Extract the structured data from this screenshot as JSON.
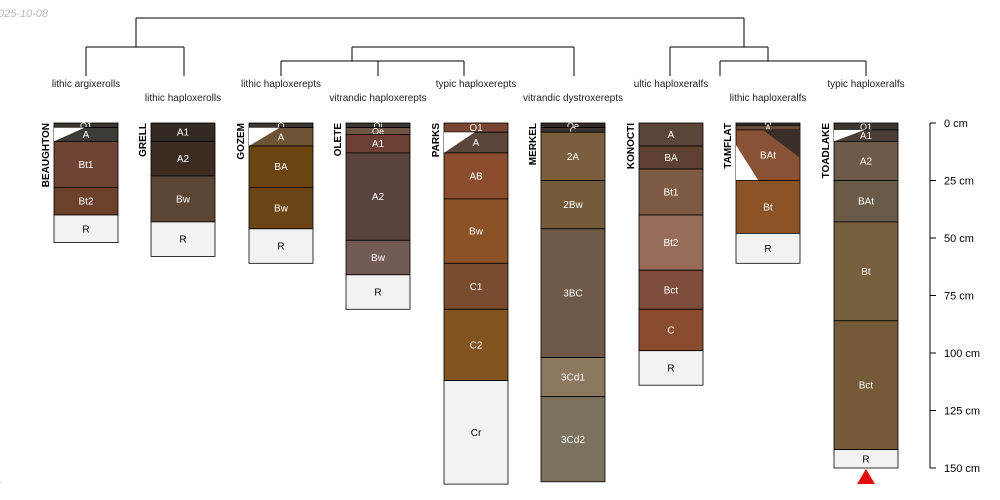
{
  "meta": {
    "date_stamp": "025-10-08",
    "corner_mark": "l"
  },
  "depth_axis": {
    "unit": "cm",
    "ticks": [
      {
        "value": 0,
        "label": "0 cm"
      },
      {
        "value": 25,
        "label": "25 cm"
      },
      {
        "value": 50,
        "label": "50 cm"
      },
      {
        "value": 75,
        "label": "75 cm"
      },
      {
        "value": 100,
        "label": "100 cm"
      },
      {
        "value": 125,
        "label": "125 cm"
      },
      {
        "value": 150,
        "label": "150 cm"
      }
    ]
  },
  "profiles": [
    {
      "name": "BEAUGHTON",
      "subgroup": "lithic argixerolls",
      "horizons": [
        {
          "name": "O1",
          "top": 0,
          "bottom": 2,
          "color": "#3a3630"
        },
        {
          "name": "A",
          "top": 2,
          "bottom": 8,
          "color": "#3e3a35",
          "wedge": "white"
        },
        {
          "name": "Bt1",
          "top": 8,
          "bottom": 28,
          "color": "#6e4434"
        },
        {
          "name": "Bt2",
          "top": 28,
          "bottom": 40,
          "color": "#6d402c"
        },
        {
          "name": "R",
          "top": 40,
          "bottom": 52,
          "color": "#f2f2f2"
        }
      ]
    },
    {
      "name": "GRELL",
      "subgroup": "lithic haploxerolls",
      "horizons": [
        {
          "name": "A1",
          "top": 0,
          "bottom": 8,
          "color": "#342a24"
        },
        {
          "name": "A2",
          "top": 8,
          "bottom": 23,
          "color": "#3c2c22"
        },
        {
          "name": "Bw",
          "top": 23,
          "bottom": 43,
          "color": "#5a4632"
        },
        {
          "name": "R",
          "top": 43,
          "bottom": 58,
          "color": "#f2f2f2"
        }
      ]
    },
    {
      "name": "GOZEM",
      "subgroup": "lithic haploxerepts",
      "horizons": [
        {
          "name": "O",
          "top": 0,
          "bottom": 2,
          "color": "#3a3630"
        },
        {
          "name": "A",
          "top": 2,
          "bottom": 10,
          "color": "#6e5436",
          "wedge": "white"
        },
        {
          "name": "BA",
          "top": 10,
          "bottom": 28,
          "color": "#6b4412"
        },
        {
          "name": "Bw",
          "top": 28,
          "bottom": 46,
          "color": "#6a4414"
        },
        {
          "name": "R",
          "top": 46,
          "bottom": 61,
          "color": "#f2f2f2"
        }
      ]
    },
    {
      "name": "OLETE",
      "subgroup": "vitrandic haploxerepts",
      "horizons": [
        {
          "name": "Oi",
          "top": 0,
          "bottom": 2,
          "color": "#3a3630"
        },
        {
          "name": "Oe",
          "top": 2,
          "bottom": 5,
          "color": "#6e5544"
        },
        {
          "name": "A1",
          "top": 5,
          "bottom": 13,
          "color": "#6c3f32"
        },
        {
          "name": "A2",
          "top": 13,
          "bottom": 51,
          "color": "#5a433d"
        },
        {
          "name": "Bw",
          "top": 51,
          "bottom": 66,
          "color": "#735a55"
        },
        {
          "name": "R",
          "top": 66,
          "bottom": 81,
          "color": "#f2f2f2"
        }
      ]
    },
    {
      "name": "PARKS",
      "subgroup": "typic haploxerepts",
      "horizons": [
        {
          "name": "O1",
          "top": 0,
          "bottom": 4,
          "color": "#7a4634"
        },
        {
          "name": "A",
          "top": 4,
          "bottom": 13,
          "color": "#5a453a",
          "wedge": "white"
        },
        {
          "name": "AB",
          "top": 13,
          "bottom": 33,
          "color": "#8c4c2e"
        },
        {
          "name": "Bw",
          "top": 33,
          "bottom": 61,
          "color": "#8a5226"
        },
        {
          "name": "C1",
          "top": 61,
          "bottom": 81,
          "color": "#7a4c2f"
        },
        {
          "name": "C2",
          "top": 81,
          "bottom": 112,
          "color": "#825520"
        },
        {
          "name": "Cr",
          "top": 112,
          "bottom": 157,
          "color": "#f2f2f2"
        }
      ]
    },
    {
      "name": "MERKEL",
      "subgroup": "vitrandic dystroxerepts",
      "horizons": [
        {
          "name": "Oe",
          "top": 0,
          "bottom": 2,
          "color": "#2f2a26"
        },
        {
          "name": "C",
          "top": 2,
          "bottom": 4,
          "color": "#3d3530"
        },
        {
          "name": "2A",
          "top": 4,
          "bottom": 25,
          "color": "#7a5e3e"
        },
        {
          "name": "2Bw",
          "top": 25,
          "bottom": 46,
          "color": "#725a3a"
        },
        {
          "name": "3BC",
          "top": 46,
          "bottom": 102,
          "color": "#6e5a46"
        },
        {
          "name": "3Cd1",
          "top": 102,
          "bottom": 119,
          "color": "#8c775f"
        },
        {
          "name": "3Cd2",
          "top": 119,
          "bottom": 156,
          "color": "#7d7260"
        }
      ]
    },
    {
      "name": "KONOCTI",
      "subgroup": "ultic haploxeralfs",
      "horizons": [
        {
          "name": "A",
          "top": 0,
          "bottom": 10,
          "color": "#5c4438"
        },
        {
          "name": "BA",
          "top": 10,
          "bottom": 20,
          "color": "#5e4130"
        },
        {
          "name": "Bt1",
          "top": 20,
          "bottom": 40,
          "color": "#7c5a44"
        },
        {
          "name": "Bt2",
          "top": 40,
          "bottom": 64,
          "color": "#986c58"
        },
        {
          "name": "Bct",
          "top": 64,
          "bottom": 81,
          "color": "#7e4c3a"
        },
        {
          "name": "C",
          "top": 81,
          "bottom": 99,
          "color": "#8a4c2e"
        },
        {
          "name": "R",
          "top": 99,
          "bottom": 114,
          "color": "#f2f2f2"
        }
      ]
    },
    {
      "name": "TAMFLAT",
      "subgroup": "lithic haploxeralfs",
      "horizons": [
        {
          "name": "O",
          "top": 0,
          "bottom": 1,
          "color": "#3a3630"
        },
        {
          "name": "A",
          "top": 1,
          "bottom": 3,
          "color": "#6b4a3a"
        },
        {
          "name": "BAt",
          "top": 3,
          "bottom": 25,
          "color": "#8a5234",
          "wedge": "dark"
        },
        {
          "name": "Bt",
          "top": 25,
          "bottom": 48,
          "color": "#8a5426"
        },
        {
          "name": "R",
          "top": 48,
          "bottom": 61,
          "color": "#f2f2f2"
        }
      ]
    },
    {
      "name": "TOADLAKE",
      "subgroup": "typic haploxeralfs",
      "horizons": [
        {
          "name": "O1",
          "top": 0,
          "bottom": 3,
          "color": "#3a3630"
        },
        {
          "name": "A1",
          "top": 3,
          "bottom": 8,
          "color": "#4c3e36",
          "wedge": "white"
        },
        {
          "name": "A2",
          "top": 8,
          "bottom": 25,
          "color": "#6e5a4a"
        },
        {
          "name": "BAt",
          "top": 25,
          "bottom": 43,
          "color": "#6a5a48"
        },
        {
          "name": "Bt",
          "top": 43,
          "bottom": 86,
          "color": "#76603e"
        },
        {
          "name": "Bct",
          "top": 86,
          "bottom": 142,
          "color": "#745a38"
        },
        {
          "name": "R",
          "top": 142,
          "bottom": 150,
          "color": "#f2f2f2"
        }
      ]
    }
  ],
  "truncation_marker": {
    "profile": "TOADLAKE",
    "color": "#e01010"
  }
}
